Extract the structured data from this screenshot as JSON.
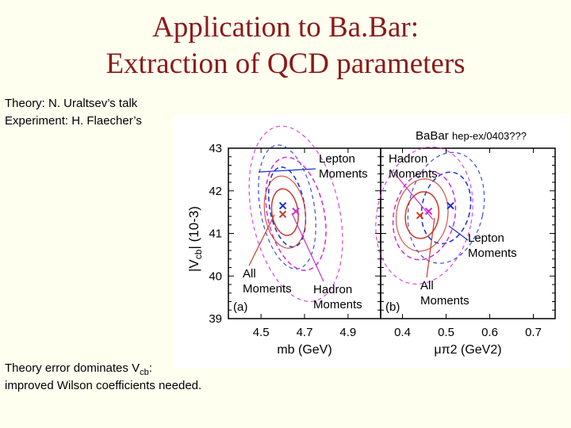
{
  "slide": {
    "title_line1": "Application to Ba.Bar:",
    "title_line2": "Extraction of QCD parameters",
    "theory_note": "Theory: N. Uraltsev’s talk",
    "experiment_note": "Experiment: H. Flaecher’s",
    "error_note_prefix": "Theory error dominates V",
    "error_note_sub": "cb",
    "error_note_suffix": ":",
    "wilson_note": "improved Wilson coefficients needed."
  },
  "chart_data": [
    {
      "panel": "a",
      "type": "contour",
      "header": "BaBar",
      "ylabel_main": "|V",
      "ylabel_sub": "cb",
      "ylabel_unit": "| (10-3)",
      "xlabel": "mb (GeV)",
      "xlim": [
        4.35,
        5.05
      ],
      "ylim": [
        39,
        43
      ],
      "xticks": [
        "4.5",
        "4.7",
        "4.9"
      ],
      "yticks": [
        "39",
        "40",
        "41",
        "42",
        "43"
      ],
      "panel_label": "(a)",
      "series": [
        {
          "name": "Lepton Moments",
          "color": "#1a2fd4",
          "style": "dashed",
          "center": [
            4.62,
            41.62
          ],
          "radius": [
            0.08,
            0.95
          ],
          "angle_deg": -10
        },
        {
          "name": "Hadron Moments",
          "color": "#d02bd0",
          "style": "dashed",
          "center": [
            4.66,
            41.46
          ],
          "radius": [
            0.13,
            1.35
          ],
          "angle_deg": -12
        },
        {
          "name": "All Moments",
          "color": "#c83a2a",
          "style": "solid",
          "center": [
            4.61,
            41.5
          ],
          "radius": [
            0.06,
            0.55
          ],
          "angle_deg": -8
        }
      ],
      "markers": [
        {
          "name": "Lepton",
          "color": "#1a2fd4",
          "x": 4.6,
          "y": 41.65
        },
        {
          "name": "Hadron",
          "color": "#d02bd0",
          "x": 4.66,
          "y": 41.52
        },
        {
          "name": "All",
          "color": "#c83a2a",
          "x": 4.6,
          "y": 41.45
        }
      ],
      "annotations": [
        {
          "line1": "Lepton",
          "line2": "Moments",
          "color": "#1a2fd4"
        },
        {
          "line1": "All",
          "line2": "Moments",
          "color": "#c83a2a"
        },
        {
          "line1": "Hadron",
          "line2": "Moments",
          "color": "#d02bd0"
        }
      ]
    },
    {
      "panel": "b",
      "type": "contour",
      "header": "hep-ex/0403???",
      "xlabel": "μπ2 (GeV2)",
      "xlim": [
        0.35,
        0.75
      ],
      "ylim": [
        39,
        43
      ],
      "xticks": [
        "0.4",
        "0.5",
        "0.6",
        "0.7"
      ],
      "panel_label": "(b)",
      "series": [
        {
          "name": "Lepton Moments",
          "color": "#1a2fd4",
          "style": "dashed",
          "center": [
            0.5,
            41.6
          ],
          "radius": [
            0.055,
            0.85
          ],
          "angle_deg": 12
        },
        {
          "name": "Hadron Moments",
          "color": "#d02bd0",
          "style": "dashed",
          "center": [
            0.45,
            41.42
          ],
          "radius": [
            0.07,
            1.05
          ],
          "angle_deg": 12
        },
        {
          "name": "All Moments",
          "color": "#c83a2a",
          "style": "solid",
          "center": [
            0.445,
            41.43
          ],
          "radius": [
            0.038,
            0.55
          ],
          "angle_deg": 8
        }
      ],
      "markers": [
        {
          "name": "Lepton",
          "color": "#1a2fd4",
          "x": 0.51,
          "y": 41.65
        },
        {
          "name": "Hadron",
          "color": "#d02bd0",
          "x": 0.46,
          "y": 41.52
        },
        {
          "name": "All",
          "color": "#c83a2a",
          "x": 0.44,
          "y": 41.42
        }
      ],
      "annotations": [
        {
          "line1": "Hadron",
          "line2": "Moments",
          "color": "#d02bd0"
        },
        {
          "line1": "Lepton",
          "line2": "Moments",
          "color": "#1a2fd4"
        },
        {
          "line1": "All",
          "line2": "Moments",
          "color": "#c83a2a"
        }
      ]
    }
  ]
}
